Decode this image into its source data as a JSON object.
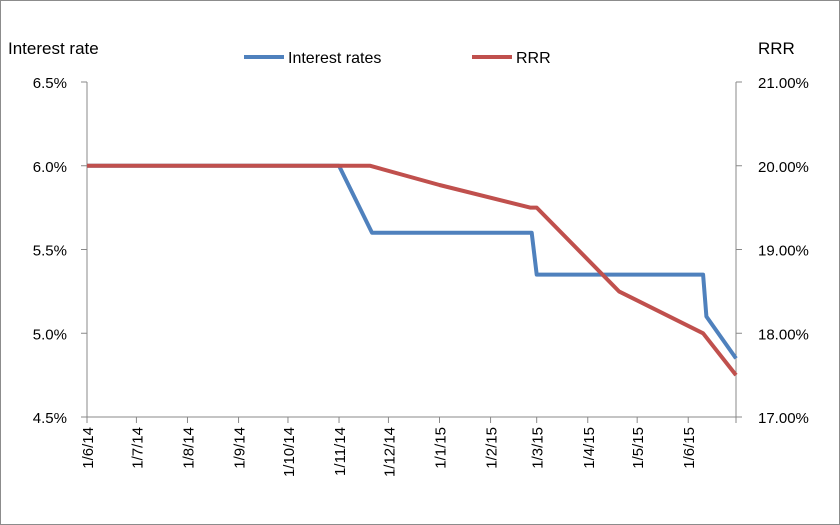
{
  "chart_data": {
    "type": "line",
    "x_tick_labels": [
      "1/6/14",
      "1/7/14",
      "1/8/14",
      "1/9/14",
      "1/10/14",
      "1/11/14",
      "1/12/14",
      "1/1/15",
      "1/2/15",
      "1/3/15",
      "1/4/15",
      "1/5/15",
      "1/6/15"
    ],
    "x_range": [
      "2014-06-01",
      "2015-06-30"
    ],
    "left_axis": {
      "label": "Interest rate",
      "ylim": [
        4.5,
        6.5
      ],
      "ticks": [
        6.5,
        6.0,
        5.5,
        5.0,
        4.5
      ],
      "tick_labels": [
        "6.5%",
        "6.0%",
        "5.5%",
        "5.0%",
        "4.5%"
      ]
    },
    "right_axis": {
      "label": "RRR",
      "ylim": [
        17.0,
        21.0
      ],
      "ticks": [
        21.0,
        20.0,
        19.0,
        18.0,
        17.0
      ],
      "tick_labels": [
        "21.00%",
        "20.00%",
        "19.00%",
        "18.00%",
        "17.00%"
      ]
    },
    "grid": false,
    "legend_position": "top",
    "series": [
      {
        "name": "Interest rates",
        "axis": "left",
        "color": "#4f81bd",
        "points": [
          {
            "date": "2014-06-01",
            "value": 6.0
          },
          {
            "date": "2014-11-01",
            "value": 6.0
          },
          {
            "date": "2014-11-21",
            "value": 5.6
          },
          {
            "date": "2015-02-26",
            "value": 5.6
          },
          {
            "date": "2015-03-01",
            "value": 5.35
          },
          {
            "date": "2015-06-10",
            "value": 5.35
          },
          {
            "date": "2015-06-12",
            "value": 5.1
          },
          {
            "date": "2015-06-30",
            "value": 4.85
          }
        ]
      },
      {
        "name": "RRR",
        "axis": "right",
        "color": "#c0504d",
        "points": [
          {
            "date": "2014-06-01",
            "value": 20.0
          },
          {
            "date": "2014-11-20",
            "value": 20.0
          },
          {
            "date": "2015-01-01",
            "value": 19.77
          },
          {
            "date": "2015-02-25",
            "value": 19.5
          },
          {
            "date": "2015-03-01",
            "value": 19.5
          },
          {
            "date": "2015-04-20",
            "value": 18.5
          },
          {
            "date": "2015-06-10",
            "value": 18.0
          },
          {
            "date": "2015-06-30",
            "value": 17.5
          }
        ]
      }
    ]
  }
}
